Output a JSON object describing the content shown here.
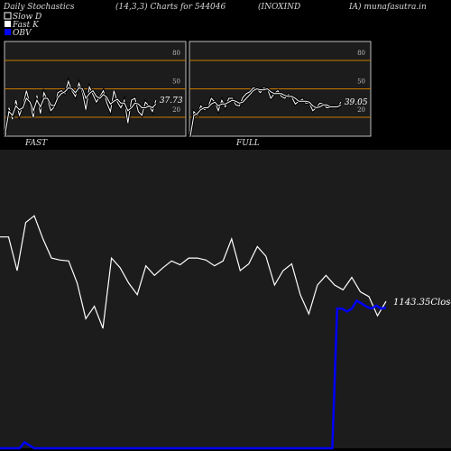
{
  "header": {
    "title": "Daily Stochastics",
    "params": "(14,3,3) Charts for 544046",
    "symbol": "(INOXIND",
    "site": "IA) munafasutra.in"
  },
  "legend": [
    {
      "label": "Slow  D",
      "color": "#000000"
    },
    {
      "label": "Fast K",
      "color": "#ffffff"
    },
    {
      "label": "OBV",
      "color": "#0000ff"
    }
  ],
  "chart_data": [
    {
      "type": "line",
      "title": "FAST",
      "ylim": [
        0,
        100
      ],
      "yticks": [
        20,
        50,
        80
      ],
      "ref_levels": [
        20,
        50,
        80
      ],
      "ref_color": "#c87800",
      "last_value_label": "37.73",
      "series": [
        {
          "values": [
            0,
            30,
            18,
            38,
            22,
            32,
            48,
            34,
            20,
            43,
            24,
            46,
            38,
            27,
            31,
            46,
            48,
            45,
            58,
            48,
            42,
            56,
            46,
            28,
            52,
            44,
            36,
            42,
            48,
            35,
            26,
            48,
            36,
            30,
            38,
            14,
            38,
            40,
            26,
            22,
            36,
            32,
            26,
            38
          ]
        },
        {
          "values": [
            4,
            26,
            22,
            32,
            28,
            30,
            40,
            36,
            27,
            38,
            31,
            40,
            40,
            33,
            32,
            41,
            45,
            47,
            51,
            50,
            46,
            51,
            50,
            40,
            45,
            48,
            42,
            40,
            44,
            41,
            34,
            37,
            39,
            35,
            35,
            27,
            30,
            35,
            34,
            30,
            30,
            32,
            30,
            34
          ]
        }
      ]
    },
    {
      "type": "line",
      "title": "FULL",
      "ylim": [
        0,
        100
      ],
      "yticks": [
        20,
        50,
        80
      ],
      "ref_levels": [
        20,
        50,
        80
      ],
      "ref_color": "#c87800",
      "last_value_label": "39.05",
      "series": [
        {
          "values": [
            0,
            26,
            22,
            32,
            28,
            30,
            40,
            36,
            27,
            38,
            31,
            40,
            40,
            33,
            32,
            41,
            45,
            47,
            51,
            50,
            46,
            51,
            50,
            40,
            45,
            48,
            42,
            40,
            44,
            41,
            34,
            37,
            39,
            35,
            35,
            27,
            30,
            35,
            34,
            30,
            30,
            32,
            30,
            36
          ]
        },
        {
          "values": [
            0,
            22,
            24,
            28,
            30,
            30,
            34,
            36,
            32,
            34,
            34,
            36,
            38,
            37,
            35,
            36,
            40,
            44,
            48,
            50,
            49,
            49,
            50,
            47,
            45,
            45,
            45,
            43,
            42,
            42,
            40,
            37,
            37,
            37,
            36,
            32,
            30,
            31,
            33,
            33,
            31,
            31,
            31,
            33
          ]
        }
      ]
    },
    {
      "type": "line",
      "title": "",
      "close_label": "1143.35",
      "close_word": "Close",
      "series": [
        {
          "name": "Close",
          "color": "#ffffff",
          "values": [
            1210,
            1210,
            1175,
            1225,
            1232,
            1208,
            1188,
            1186,
            1185,
            1162,
            1125,
            1138,
            1115,
            1188,
            1178,
            1162,
            1150,
            1180,
            1170,
            1178,
            1185,
            1181,
            1188,
            1188,
            1186,
            1180,
            1185,
            1208,
            1175,
            1182,
            1200,
            1190,
            1160,
            1175,
            1182,
            1150,
            1130,
            1160,
            1170,
            1160,
            1155,
            1168,
            1153,
            1148,
            1128,
            1143
          ]
        },
        {
          "name": "OBV",
          "color": "#0000ff",
          "values": [
            0,
            0,
            0,
            0,
            0,
            6,
            3,
            0,
            0,
            0,
            0,
            0,
            0,
            0,
            0,
            0,
            0,
            0,
            0,
            0,
            0,
            0,
            0,
            0,
            0,
            0,
            0,
            0,
            0,
            0,
            0,
            0,
            0,
            0,
            0,
            0,
            0,
            0,
            0,
            0,
            0,
            0,
            0,
            0,
            0,
            0,
            0,
            0,
            0,
            0,
            0,
            0,
            0,
            0,
            0,
            0,
            0,
            0,
            0,
            0,
            0,
            0,
            0,
            0,
            0,
            0,
            0,
            0,
            0,
            140,
            140,
            137,
            140,
            148,
            145,
            142,
            140,
            143,
            140,
            141
          ]
        }
      ]
    }
  ]
}
